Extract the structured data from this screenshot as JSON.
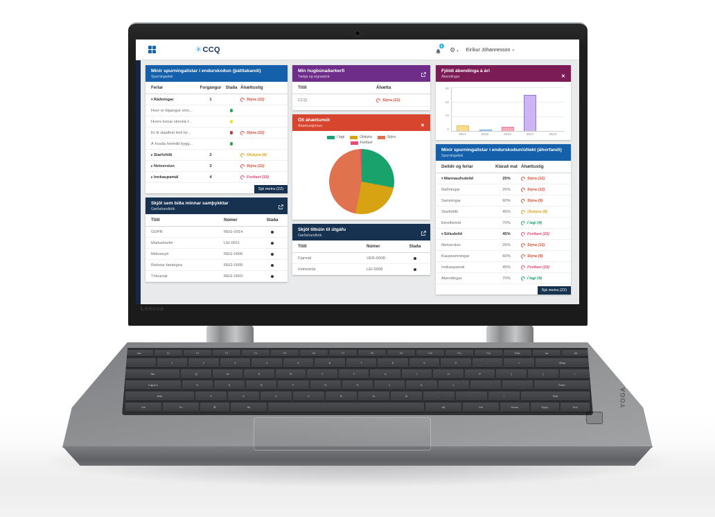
{
  "header": {
    "logo": "CCQ",
    "notification_count": "1",
    "user_name": "Eiríkur Jóhannesson"
  },
  "panels": {
    "participant": {
      "title": "Mínir spurningalistar í endurskoðun (þátttakandi)",
      "subtitle": "Spurningalisti",
      "col_ferlar": "Ferlar",
      "col_forgangur": "Forgangur",
      "col_stada": "Staða",
      "col_ahaettustig": "Áhættustig",
      "rows": [
        {
          "label": "Ráðningar",
          "expand": "down",
          "group": "true",
          "priority": "1",
          "risk": "Stýra (12)",
          "level": "styra"
        },
        {
          "label": "Hver er tilgangur vinn...",
          "dot": "green"
        },
        {
          "label": "Hvers konar vinnsla f...",
          "dot": "yellow"
        },
        {
          "label": "Er til skjalfest ferli fyr...",
          "dot": "red",
          "risk": "Stýra (12)",
          "level": "styra"
        },
        {
          "label": "Á hvaða heimild bygg...",
          "dot": "green"
        },
        {
          "label": "Starfsfólk",
          "expand": "right",
          "group": "true",
          "priority": "2",
          "risk": "Útskýra (6)",
          "level": "utskyra"
        },
        {
          "label": "Netverslun",
          "expand": "right",
          "group": "true",
          "priority": "3",
          "risk": "Stýra (12)",
          "level": "styra"
        },
        {
          "label": "Innkaupamál",
          "expand": "right",
          "group": "true",
          "priority": "4",
          "risk": "Forðast (15)",
          "level": "fordast"
        }
      ],
      "more": "Sjá meira (22)"
    },
    "approvals": {
      "title": "Skjöl sem bíða minnar samþykktar",
      "subtitle": "Gæðahandbók",
      "col_titill": "Titill",
      "col_numer": "Númer",
      "col_stada": "Staða",
      "rows": [
        {
          "title": "GDPR",
          "number": "REG-0014",
          "dot": "dark"
        },
        {
          "title": "Markaðsefni",
          "number": "LEI-0011",
          "dot": "dark"
        },
        {
          "title": "Mötuneyti",
          "number": "REG-0006",
          "dot": "dark"
        },
        {
          "title": "Rekstur fasteigna",
          "number": "REG-0005",
          "dot": "dark"
        },
        {
          "title": "Tölvumál",
          "number": "REG-0003",
          "dot": "dark"
        }
      ]
    },
    "software": {
      "title": "Mín hugbúnaðarkerfi",
      "subtitle": "Tækja og eignaskrá",
      "col_titill": "Titill",
      "col_ahaetta": "Áhætta",
      "rows": [
        {
          "title": "CCQ",
          "risk": "Stýra (12)",
          "level": "styra"
        }
      ]
    },
    "risk": {
      "title": "Öll áhættumót",
      "subtitle": "Áhættustjórnun"
    },
    "publish": {
      "title": "Skjöl tilbúin til útgáfu",
      "subtitle": "Gæðahandbók",
      "col_titill": "Titill",
      "col_numer": "Númer",
      "col_stada": "Staða",
      "rows": [
        {
          "title": "Fjármál",
          "number": "VER-0008",
          "dot": "dark"
        },
        {
          "title": "Innheimta",
          "number": "LEI-0008",
          "dot": "dark"
        }
      ]
    },
    "suggestions": {
      "title": "Fjöldi ábendinga á ári",
      "subtitle": "Ábendingar"
    },
    "observer": {
      "title": "Mínir spurningalistar í endurskoðun/úttekt (áhorfandi)",
      "subtitle": "Spurningalisti",
      "col_deildir": "Deildir og ferlar",
      "col_klarad": "Klárað mat",
      "col_ahaettustig": "Áhættustig",
      "rows": [
        {
          "label": "Mannauðsdeild",
          "expand": "down",
          "group": "true",
          "pct": "25%",
          "risk": "Stýra (12)",
          "level": "styra"
        },
        {
          "label": "Ráðningar",
          "pct": "25%",
          "risk": "Stýra (12)",
          "level": "styra"
        },
        {
          "label": "Samningar",
          "pct": "60%",
          "risk": "Stýra (9)",
          "level": "styra"
        },
        {
          "label": "Starfsfólk",
          "pct": "45%",
          "risk": "Útskýra (6)",
          "level": "utskyra"
        },
        {
          "label": "Eineltismál",
          "pct": "70%",
          "risk": "Í lagi (4)",
          "level": "ilagi"
        },
        {
          "label": "Söludeild",
          "expand": "down",
          "group": "true",
          "pct": "45%",
          "risk": "Forðast (15)",
          "level": "fordast"
        },
        {
          "label": "Netverslun",
          "pct": "25%",
          "risk": "Stýra (12)",
          "level": "styra"
        },
        {
          "label": "Kaupsamningar",
          "pct": "60%",
          "risk": "Stýra (9)",
          "level": "styra"
        },
        {
          "label": "Innkaupamál",
          "pct": "45%",
          "risk": "Forðast (15)",
          "level": "fordast"
        },
        {
          "label": "Ábendingar",
          "pct": "70%",
          "risk": "Í lagi (4)",
          "level": "ilagi"
        }
      ],
      "more": "Sjá meira (22)"
    }
  },
  "chart_data": [
    {
      "type": "pie",
      "title": "Öll áhættumót",
      "labels": [
        "Í lagi",
        "Útskýra",
        "Stýra",
        "Forðast"
      ],
      "values": [
        28,
        25,
        46,
        1
      ],
      "colors": [
        "#19a26b",
        "#d7a313",
        "#e0724e",
        "#ea4a74"
      ],
      "legend_position": "top"
    },
    {
      "type": "bar",
      "title": "Fjöldi ábendinga á ári",
      "categories": [
        "2014",
        "2015",
        "2016",
        "2017",
        "2018"
      ],
      "values": [
        4,
        1,
        3,
        25,
        0
      ],
      "colors": [
        "#f8dc8e",
        "#abcdf1",
        "#f6aabb",
        "#cbb5f2",
        "#cccccc"
      ],
      "border_colors": [
        "#e6bd57",
        "#74a9d8",
        "#ec7f9b",
        "#9572dd",
        "#cccccc"
      ],
      "ylim": [
        0,
        30
      ],
      "yticks": [
        0,
        10,
        20,
        30
      ]
    }
  ],
  "laptop": {
    "brand": "Lenovo",
    "model": "YOGA",
    "keyboard": [
      [
        "Esc",
        "F1",
        "F2",
        "F3",
        "F4",
        "F5",
        "F6",
        "F7",
        "F8",
        "F9",
        "F10",
        "F11",
        "F12",
        "PrtSc",
        "Ins",
        "Del"
      ],
      [
        "`",
        "1",
        "2",
        "3",
        "4",
        "5",
        "6",
        "7",
        "8",
        "9",
        "0",
        "-",
        "=",
        "Bksp"
      ],
      [
        "Tab",
        "Q",
        "W",
        "E",
        "R",
        "T",
        "Y",
        "U",
        "I",
        "O",
        "P",
        "[",
        "]",
        "\\"
      ],
      [
        "CapsLk",
        "A",
        "S",
        "D",
        "F",
        "G",
        "H",
        "J",
        "K",
        "L",
        ";",
        "'",
        "Enter"
      ],
      [
        "Shift",
        "Z",
        "X",
        "C",
        "V",
        "B",
        "N",
        "M",
        ",",
        ".",
        "/",
        "Shift"
      ],
      [
        "Ctrl",
        "Fn",
        "⊞",
        "Alt",
        "",
        "Alt",
        "Ctrl",
        "Home",
        "PgUp",
        "End"
      ]
    ]
  }
}
